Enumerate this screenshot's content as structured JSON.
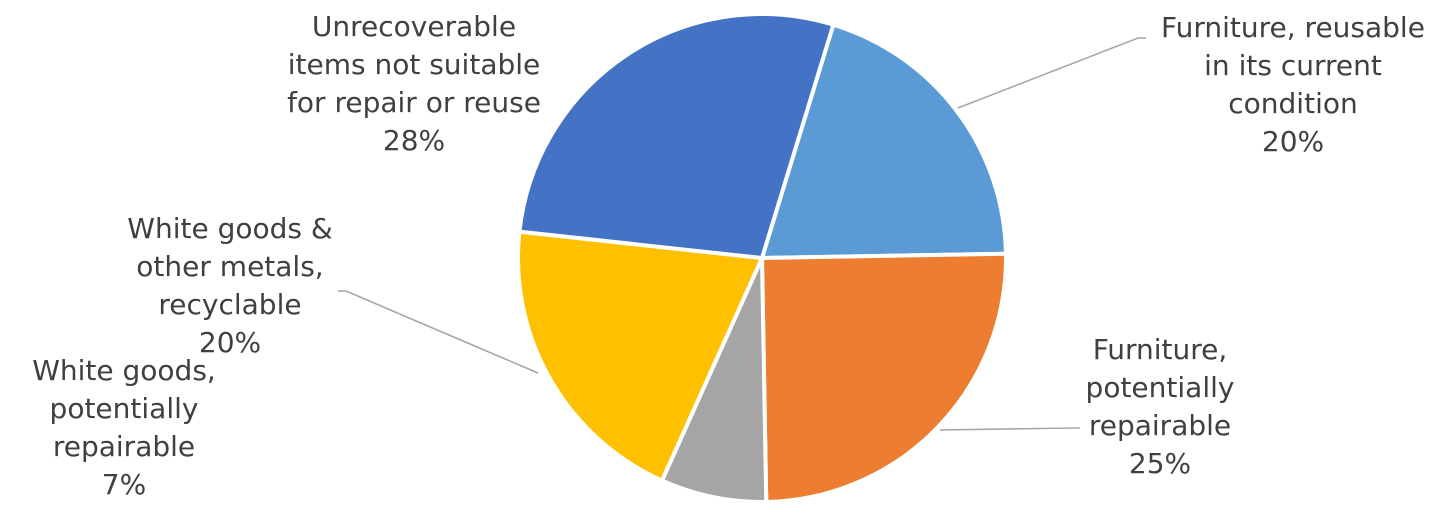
{
  "chart_data": {
    "type": "pie",
    "title": "",
    "start_angle_deg": 17,
    "direction": "clockwise",
    "slices": [
      {
        "label_lines": [
          "Furniture, reusable",
          "in its current",
          "condition"
        ],
        "percent_label": "20%",
        "value": 20,
        "color": "#5b9bd5"
      },
      {
        "label_lines": [
          "Furniture,",
          "potentially",
          "repairable"
        ],
        "percent_label": "25%",
        "value": 25,
        "color": "#ed7d31"
      },
      {
        "label_lines": [
          "White goods,",
          "potentially",
          "repairable"
        ],
        "percent_label": "7%",
        "value": 7,
        "color": "#a5a5a5"
      },
      {
        "label_lines": [
          "White goods &",
          "other metals,",
          "recyclable"
        ],
        "percent_label": "20%",
        "value": 20,
        "color": "#ffc000"
      },
      {
        "label_lines": [
          "Unrecoverable",
          "items not suitable",
          "for repair or reuse"
        ],
        "percent_label": "28%",
        "value": 28,
        "color": "#4472c4"
      }
    ]
  }
}
